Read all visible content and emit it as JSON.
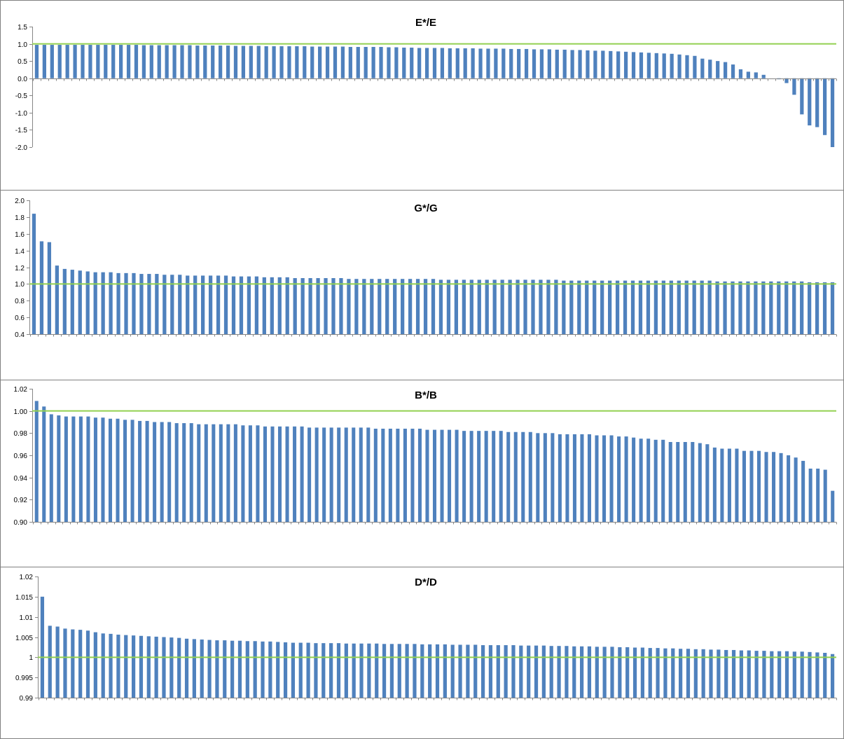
{
  "colors": {
    "bar": "#4f81bd",
    "reference_line": "#92d050",
    "axis": "#868686",
    "border": "#808080"
  },
  "chart_data": [
    {
      "type": "bar",
      "title": "E*/E",
      "xlabel": "",
      "ylabel": "",
      "ylim": [
        -2.0,
        1.5
      ],
      "y_ticks": [
        "1.5",
        "1.0",
        "0.5",
        "0.0",
        "-0.5",
        "-1.0",
        "-1.5",
        "-2.0"
      ],
      "y_tick_values": [
        1.5,
        1.0,
        0.5,
        0.0,
        -0.5,
        -1.0,
        -1.5,
        -2.0
      ],
      "reference_line": 1.0,
      "grid": false,
      "values": [
        0.97,
        0.97,
        0.97,
        0.97,
        0.97,
        0.97,
        0.97,
        0.97,
        0.97,
        0.97,
        0.97,
        0.97,
        0.97,
        0.97,
        0.96,
        0.96,
        0.96,
        0.96,
        0.96,
        0.96,
        0.96,
        0.95,
        0.95,
        0.95,
        0.95,
        0.95,
        0.94,
        0.94,
        0.94,
        0.94,
        0.93,
        0.93,
        0.93,
        0.93,
        0.93,
        0.93,
        0.92,
        0.92,
        0.92,
        0.92,
        0.92,
        0.91,
        0.91,
        0.91,
        0.91,
        0.91,
        0.9,
        0.9,
        0.89,
        0.89,
        0.88,
        0.88,
        0.88,
        0.88,
        0.87,
        0.87,
        0.87,
        0.87,
        0.86,
        0.86,
        0.86,
        0.86,
        0.85,
        0.85,
        0.85,
        0.84,
        0.84,
        0.84,
        0.83,
        0.83,
        0.82,
        0.82,
        0.81,
        0.8,
        0.8,
        0.79,
        0.78,
        0.77,
        0.76,
        0.75,
        0.74,
        0.73,
        0.72,
        0.71,
        0.69,
        0.67,
        0.65,
        0.57,
        0.54,
        0.5,
        0.47,
        0.4,
        0.26,
        0.19,
        0.17,
        0.1,
        0.0,
        -0.03,
        -0.14,
        -0.48,
        -1.05,
        -1.37,
        -1.42,
        -1.65,
        -2.0
      ]
    },
    {
      "type": "bar",
      "title": "G*/G",
      "xlabel": "",
      "ylabel": "",
      "ylim": [
        0.4,
        2.0
      ],
      "y_ticks": [
        "2.0",
        "1.8",
        "1.6",
        "1.4",
        "1.2",
        "1.0",
        "0.8",
        "0.6",
        "0.4"
      ],
      "y_tick_values": [
        2.0,
        1.8,
        1.6,
        1.4,
        1.2,
        1.0,
        0.8,
        0.6,
        0.4
      ],
      "reference_line": 1.0,
      "grid": false,
      "values": [
        1.84,
        1.51,
        1.5,
        1.22,
        1.18,
        1.17,
        1.16,
        1.15,
        1.14,
        1.14,
        1.14,
        1.13,
        1.13,
        1.13,
        1.12,
        1.12,
        1.12,
        1.11,
        1.11,
        1.11,
        1.1,
        1.1,
        1.1,
        1.1,
        1.1,
        1.1,
        1.09,
        1.09,
        1.09,
        1.09,
        1.08,
        1.08,
        1.08,
        1.08,
        1.07,
        1.07,
        1.07,
        1.07,
        1.07,
        1.07,
        1.07,
        1.06,
        1.06,
        1.06,
        1.06,
        1.06,
        1.06,
        1.06,
        1.06,
        1.06,
        1.06,
        1.06,
        1.06,
        1.05,
        1.05,
        1.05,
        1.05,
        1.05,
        1.05,
        1.05,
        1.05,
        1.05,
        1.05,
        1.05,
        1.05,
        1.05,
        1.05,
        1.05,
        1.05,
        1.04,
        1.04,
        1.04,
        1.04,
        1.04,
        1.04,
        1.04,
        1.04,
        1.04,
        1.04,
        1.04,
        1.04,
        1.04,
        1.04,
        1.04,
        1.04,
        1.04,
        1.04,
        1.04,
        1.04,
        1.03,
        1.03,
        1.03,
        1.03,
        1.03,
        1.03,
        1.03,
        1.03,
        1.03,
        1.03,
        1.03,
        1.03,
        1.02,
        1.02,
        1.02,
        1.02
      ]
    },
    {
      "type": "bar",
      "title": "B*/B",
      "xlabel": "",
      "ylabel": "",
      "ylim": [
        0.9,
        1.02
      ],
      "y_ticks": [
        "1.02",
        "1.00",
        "0.98",
        "0.96",
        "0.94",
        "0.92",
        "0.90"
      ],
      "y_tick_values": [
        1.02,
        1.0,
        0.98,
        0.96,
        0.94,
        0.92,
        0.9
      ],
      "reference_line": 1.0,
      "grid": false,
      "values": [
        1.009,
        1.004,
        0.997,
        0.996,
        0.995,
        0.995,
        0.995,
        0.995,
        0.994,
        0.994,
        0.993,
        0.993,
        0.992,
        0.992,
        0.991,
        0.991,
        0.99,
        0.99,
        0.99,
        0.989,
        0.989,
        0.989,
        0.988,
        0.988,
        0.988,
        0.988,
        0.988,
        0.988,
        0.987,
        0.987,
        0.987,
        0.986,
        0.986,
        0.986,
        0.986,
        0.986,
        0.986,
        0.985,
        0.985,
        0.985,
        0.985,
        0.985,
        0.985,
        0.985,
        0.985,
        0.985,
        0.984,
        0.984,
        0.984,
        0.984,
        0.984,
        0.984,
        0.984,
        0.983,
        0.983,
        0.983,
        0.983,
        0.983,
        0.982,
        0.982,
        0.982,
        0.982,
        0.982,
        0.982,
        0.981,
        0.981,
        0.981,
        0.981,
        0.98,
        0.98,
        0.98,
        0.979,
        0.979,
        0.979,
        0.979,
        0.979,
        0.978,
        0.978,
        0.978,
        0.977,
        0.977,
        0.976,
        0.975,
        0.975,
        0.974,
        0.974,
        0.972,
        0.972,
        0.972,
        0.972,
        0.971,
        0.97,
        0.967,
        0.966,
        0.966,
        0.966,
        0.964,
        0.964,
        0.964,
        0.963,
        0.963,
        0.962,
        0.96,
        0.958,
        0.955,
        0.948,
        0.948,
        0.947,
        0.928
      ]
    },
    {
      "type": "bar",
      "title": "D*/D",
      "xlabel": "",
      "ylabel": "",
      "ylim": [
        0.99,
        1.02
      ],
      "y_ticks": [
        "1.02",
        "1.015",
        "1.01",
        "1.005",
        "1",
        "0.995",
        "0.99"
      ],
      "y_tick_values": [
        1.02,
        1.015,
        1.01,
        1.005,
        1.0,
        0.995,
        0.99
      ],
      "reference_line": 1.0,
      "grid": false,
      "values": [
        1.015,
        1.0078,
        1.0076,
        1.0071,
        1.0069,
        1.0068,
        1.0066,
        1.0062,
        1.0059,
        1.0058,
        1.0056,
        1.0055,
        1.0054,
        1.0053,
        1.0052,
        1.0051,
        1.005,
        1.0049,
        1.0048,
        1.0046,
        1.0045,
        1.0044,
        1.0043,
        1.0042,
        1.0042,
        1.0041,
        1.0041,
        1.004,
        1.004,
        1.0039,
        1.0039,
        1.0038,
        1.0037,
        1.0036,
        1.0036,
        1.0036,
        1.0035,
        1.0035,
        1.0035,
        1.0035,
        1.0034,
        1.0034,
        1.0034,
        1.0034,
        1.0034,
        1.0033,
        1.0033,
        1.0033,
        1.0033,
        1.0033,
        1.0032,
        1.0032,
        1.0032,
        1.0032,
        1.0031,
        1.0031,
        1.0031,
        1.0031,
        1.003,
        1.003,
        1.003,
        1.003,
        1.003,
        1.0029,
        1.0029,
        1.0029,
        1.0029,
        1.0028,
        1.0028,
        1.0028,
        1.0027,
        1.0027,
        1.0027,
        1.0026,
        1.0026,
        1.0026,
        1.0025,
        1.0025,
        1.0024,
        1.0024,
        1.0023,
        1.0023,
        1.0022,
        1.0022,
        1.0021,
        1.0021,
        1.002,
        1.002,
        1.0019,
        1.0019,
        1.0018,
        1.0018,
        1.0017,
        1.0017,
        1.0016,
        1.0016,
        1.0015,
        1.0015,
        1.0015,
        1.0014,
        1.0014,
        1.0013,
        1.0012,
        1.0011,
        1.0008
      ]
    }
  ]
}
